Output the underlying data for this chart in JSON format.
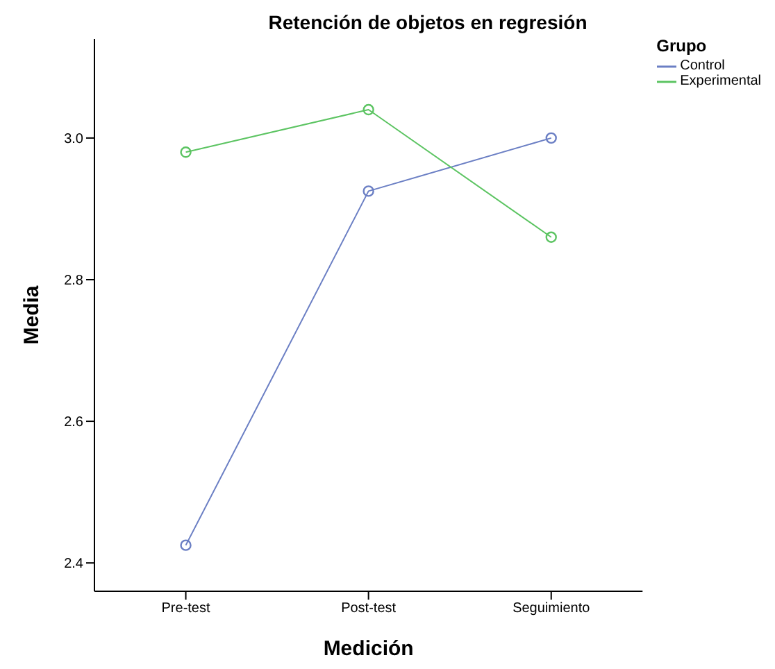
{
  "chart_data": {
    "type": "line",
    "title": "Retención de objetos en regresión",
    "xlabel": "Medición",
    "ylabel": "Media",
    "legend_title": "Grupo",
    "categories": [
      "Pre-test",
      "Post-test",
      "Seguimiento"
    ],
    "series": [
      {
        "name": "Control",
        "color": "#6b7fc4",
        "values": [
          2.425,
          2.925,
          3.0
        ]
      },
      {
        "name": "Experimental",
        "color": "#5cc462",
        "values": [
          2.98,
          3.04,
          2.86
        ]
      }
    ],
    "ylim": [
      2.36,
      3.14
    ],
    "yticks": [
      {
        "value": 2.4,
        "label": "2.4"
      },
      {
        "value": 2.6,
        "label": "2.6"
      },
      {
        "value": 2.8,
        "label": "2.8"
      },
      {
        "value": 3.0,
        "label": "3.0"
      }
    ],
    "grid": false,
    "legend": "top right",
    "marker": "circle",
    "line_style": "solid"
  }
}
